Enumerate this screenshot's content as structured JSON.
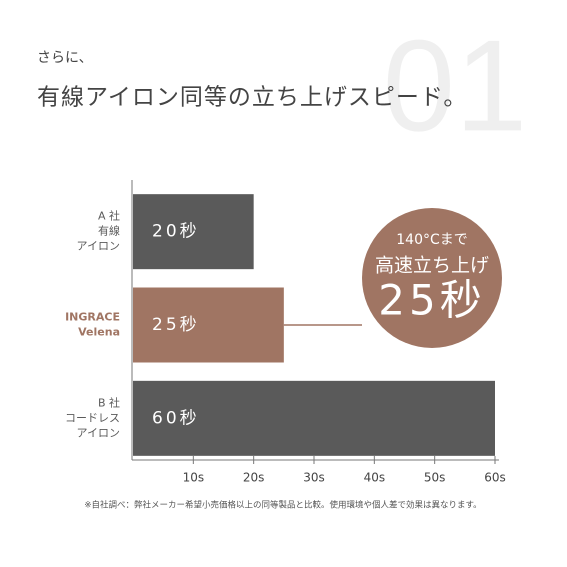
{
  "chart_data": {
    "type": "hbar",
    "title": "有線アイロン同等の立ち上げスピード。",
    "subtitle": "さらに、",
    "watermark": "01",
    "categories": [
      [
        "A 社",
        "有線",
        "アイロン"
      ],
      [
        "INGRACE",
        "Velena"
      ],
      [
        "B 社",
        "コードレス",
        "アイロン"
      ]
    ],
    "values": [
      20,
      25,
      60
    ],
    "value_labels": [
      "20秒",
      "25秒",
      "60秒"
    ],
    "colors": [
      "#5a5a5a",
      "#a07563",
      "#5a5a5a"
    ],
    "xlim": [
      0,
      60
    ],
    "xticks": [
      {
        "value": 10,
        "label": "10s"
      },
      {
        "value": 20,
        "label": "20s"
      },
      {
        "value": 30,
        "label": "30s"
      },
      {
        "value": 40,
        "label": "40s"
      },
      {
        "value": 50,
        "label": "50s"
      },
      {
        "value": 60,
        "label": "60s"
      }
    ],
    "annotation": {
      "lines": [
        "140°Cまで",
        "高速立ち上げ"
      ],
      "emphasis": "25秒",
      "color": "#a07563"
    },
    "footnote": "※自社調べ：弊社メーカー希望小売価格以上の同等製品と比較。使用環境や個人差で効果は異なります。"
  }
}
